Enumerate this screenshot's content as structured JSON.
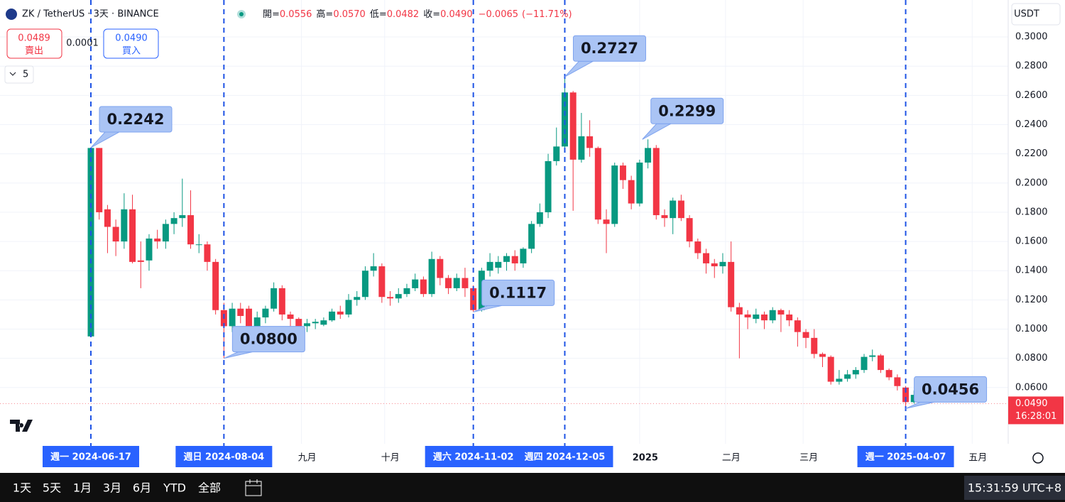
{
  "chart_data": {
    "type": "candlestick",
    "title": "ZK / TetherUS · 3天 · BINANCE",
    "interval": "3天",
    "start": "2024-06-17",
    "header": {
      "ohlc": [
        {
          "label": "開=",
          "value": "0.0556"
        },
        {
          "label": "高=",
          "value": "0.0570"
        },
        {
          "label": "低=",
          "value": "0.0482"
        },
        {
          "label": "收=",
          "value": "0.0490"
        }
      ],
      "change": "−0.0065",
      "change_pct": "(−11.71%)"
    },
    "trade": {
      "sell_price": "0.0489",
      "sell_label": "賣出",
      "spread": "0.0001",
      "buy_price": "0.0490",
      "buy_label": "買入",
      "quantity": "5"
    },
    "currency": "USDT",
    "up_color": "#089981",
    "down_color": "#f23645",
    "ylim": [
      0.0215,
      0.3253
    ],
    "yticks": [
      {
        "value": 0.06,
        "label": "0.0600"
      },
      {
        "value": 0.08,
        "label": "0.0800"
      },
      {
        "value": 0.1,
        "label": "0.1000"
      },
      {
        "value": 0.12,
        "label": "0.1200"
      },
      {
        "value": 0.14,
        "label": "0.1400"
      },
      {
        "value": 0.16,
        "label": "0.1600"
      },
      {
        "value": 0.18,
        "label": "0.1800"
      },
      {
        "value": 0.2,
        "label": "0.2000"
      },
      {
        "value": 0.22,
        "label": "0.2200"
      },
      {
        "value": 0.24,
        "label": "0.2400"
      },
      {
        "value": 0.26,
        "label": "0.2600"
      },
      {
        "value": 0.28,
        "label": "0.2800"
      },
      {
        "value": 0.3,
        "label": "0.3000"
      }
    ],
    "grid": true,
    "xlabels": [
      {
        "label": "九月",
        "date": "2024-09-01"
      },
      {
        "label": "十月",
        "date": "2024-10-01"
      },
      {
        "label": "2025",
        "date": "2025-01-01"
      },
      {
        "label": "二月",
        "date": "2025-02-01"
      },
      {
        "label": "三月",
        "date": "2025-03-01"
      },
      {
        "label": "五月",
        "date": "2025-05-01"
      }
    ],
    "markers": [
      {
        "label": "週一 2024-06-17",
        "value": 0.2242,
        "value_label": "0.2242"
      },
      {
        "label": "週日 2024-08-04",
        "value": 0.08,
        "value_label": "0.0800"
      },
      {
        "label": "週六 2024-11-02",
        "value": 0.1117,
        "value_label": "0.1117"
      },
      {
        "label": "週四 2024-12-05",
        "value": 0.2727,
        "value_label": "0.2727"
      },
      {
        "label": "週一 2025-04-07",
        "value": 0.0456,
        "value_label": "0.0456"
      }
    ],
    "extra_callout": {
      "date": "2025-01-02",
      "value": 0.2299,
      "value_label": "0.2299"
    },
    "last_price": {
      "value": 0.049,
      "label": "0.0490",
      "countdown": "16:28:01"
    },
    "candles": [
      {
        "o": 0.095,
        "h": 0.2242,
        "l": 0.095,
        "c": 0.224
      },
      {
        "o": 0.224,
        "h": 0.224,
        "l": 0.175,
        "c": 0.18
      },
      {
        "o": 0.182,
        "h": 0.185,
        "l": 0.152,
        "c": 0.17
      },
      {
        "o": 0.17,
        "h": 0.175,
        "l": 0.15,
        "c": 0.16
      },
      {
        "o": 0.16,
        "h": 0.193,
        "l": 0.155,
        "c": 0.182
      },
      {
        "o": 0.182,
        "h": 0.192,
        "l": 0.145,
        "c": 0.146
      },
      {
        "o": 0.147,
        "h": 0.16,
        "l": 0.128,
        "c": 0.146
      },
      {
        "o": 0.147,
        "h": 0.165,
        "l": 0.14,
        "c": 0.162
      },
      {
        "o": 0.162,
        "h": 0.168,
        "l": 0.155,
        "c": 0.16
      },
      {
        "o": 0.16,
        "h": 0.175,
        "l": 0.155,
        "c": 0.172
      },
      {
        "o": 0.172,
        "h": 0.18,
        "l": 0.165,
        "c": 0.176
      },
      {
        "o": 0.176,
        "h": 0.203,
        "l": 0.17,
        "c": 0.178
      },
      {
        "o": 0.178,
        "h": 0.195,
        "l": 0.155,
        "c": 0.158
      },
      {
        "o": 0.158,
        "h": 0.165,
        "l": 0.152,
        "c": 0.158
      },
      {
        "o": 0.158,
        "h": 0.16,
        "l": 0.14,
        "c": 0.146
      },
      {
        "o": 0.146,
        "h": 0.148,
        "l": 0.11,
        "c": 0.113
      },
      {
        "o": 0.113,
        "h": 0.118,
        "l": 0.08,
        "c": 0.102
      },
      {
        "o": 0.102,
        "h": 0.118,
        "l": 0.098,
        "c": 0.114
      },
      {
        "o": 0.114,
        "h": 0.118,
        "l": 0.104,
        "c": 0.109
      },
      {
        "o": 0.114,
        "h": 0.116,
        "l": 0.098,
        "c": 0.102
      },
      {
        "o": 0.102,
        "h": 0.112,
        "l": 0.098,
        "c": 0.108
      },
      {
        "o": 0.108,
        "h": 0.116,
        "l": 0.104,
        "c": 0.114
      },
      {
        "o": 0.114,
        "h": 0.132,
        "l": 0.112,
        "c": 0.128
      },
      {
        "o": 0.128,
        "h": 0.13,
        "l": 0.106,
        "c": 0.11
      },
      {
        "o": 0.11,
        "h": 0.112,
        "l": 0.1,
        "c": 0.107
      },
      {
        "o": 0.107,
        "h": 0.108,
        "l": 0.096,
        "c": 0.102
      },
      {
        "o": 0.102,
        "h": 0.107,
        "l": 0.098,
        "c": 0.104
      },
      {
        "o": 0.104,
        "h": 0.107,
        "l": 0.1,
        "c": 0.105
      },
      {
        "o": 0.103,
        "h": 0.108,
        "l": 0.102,
        "c": 0.106
      },
      {
        "o": 0.106,
        "h": 0.114,
        "l": 0.105,
        "c": 0.112
      },
      {
        "o": 0.112,
        "h": 0.116,
        "l": 0.107,
        "c": 0.11
      },
      {
        "o": 0.11,
        "h": 0.124,
        "l": 0.108,
        "c": 0.12
      },
      {
        "o": 0.12,
        "h": 0.126,
        "l": 0.116,
        "c": 0.122
      },
      {
        "o": 0.122,
        "h": 0.143,
        "l": 0.12,
        "c": 0.14
      },
      {
        "o": 0.14,
        "h": 0.152,
        "l": 0.136,
        "c": 0.143
      },
      {
        "o": 0.143,
        "h": 0.145,
        "l": 0.118,
        "c": 0.122
      },
      {
        "o": 0.122,
        "h": 0.126,
        "l": 0.116,
        "c": 0.121
      },
      {
        "o": 0.121,
        "h": 0.128,
        "l": 0.118,
        "c": 0.124
      },
      {
        "o": 0.124,
        "h": 0.131,
        "l": 0.122,
        "c": 0.128
      },
      {
        "o": 0.128,
        "h": 0.138,
        "l": 0.126,
        "c": 0.134
      },
      {
        "o": 0.134,
        "h": 0.136,
        "l": 0.122,
        "c": 0.124
      },
      {
        "o": 0.124,
        "h": 0.153,
        "l": 0.122,
        "c": 0.148
      },
      {
        "o": 0.148,
        "h": 0.15,
        "l": 0.13,
        "c": 0.135
      },
      {
        "o": 0.135,
        "h": 0.137,
        "l": 0.124,
        "c": 0.128
      },
      {
        "o": 0.128,
        "h": 0.138,
        "l": 0.126,
        "c": 0.135
      },
      {
        "o": 0.135,
        "h": 0.142,
        "l": 0.122,
        "c": 0.128
      },
      {
        "o": 0.128,
        "h": 0.13,
        "l": 0.1117,
        "c": 0.113
      },
      {
        "o": 0.113,
        "h": 0.142,
        "l": 0.112,
        "c": 0.14
      },
      {
        "o": 0.14,
        "h": 0.152,
        "l": 0.136,
        "c": 0.146
      },
      {
        "o": 0.142,
        "h": 0.15,
        "l": 0.138,
        "c": 0.146
      },
      {
        "o": 0.146,
        "h": 0.152,
        "l": 0.14,
        "c": 0.15
      },
      {
        "o": 0.15,
        "h": 0.154,
        "l": 0.14,
        "c": 0.145
      },
      {
        "o": 0.145,
        "h": 0.156,
        "l": 0.142,
        "c": 0.155
      },
      {
        "o": 0.155,
        "h": 0.174,
        "l": 0.152,
        "c": 0.172
      },
      {
        "o": 0.172,
        "h": 0.186,
        "l": 0.17,
        "c": 0.18
      },
      {
        "o": 0.18,
        "h": 0.22,
        "l": 0.176,
        "c": 0.215
      },
      {
        "o": 0.215,
        "h": 0.238,
        "l": 0.212,
        "c": 0.225
      },
      {
        "o": 0.225,
        "h": 0.2727,
        "l": 0.224,
        "c": 0.262
      },
      {
        "o": 0.262,
        "h": 0.263,
        "l": 0.181,
        "c": 0.216
      },
      {
        "o": 0.216,
        "h": 0.248,
        "l": 0.214,
        "c": 0.232
      },
      {
        "o": 0.232,
        "h": 0.243,
        "l": 0.218,
        "c": 0.224
      },
      {
        "o": 0.224,
        "h": 0.225,
        "l": 0.172,
        "c": 0.175
      },
      {
        "o": 0.175,
        "h": 0.182,
        "l": 0.152,
        "c": 0.172
      },
      {
        "o": 0.172,
        "h": 0.214,
        "l": 0.17,
        "c": 0.212
      },
      {
        "o": 0.212,
        "h": 0.214,
        "l": 0.196,
        "c": 0.202
      },
      {
        "o": 0.202,
        "h": 0.205,
        "l": 0.182,
        "c": 0.186
      },
      {
        "o": 0.186,
        "h": 0.216,
        "l": 0.184,
        "c": 0.214
      },
      {
        "o": 0.214,
        "h": 0.2299,
        "l": 0.21,
        "c": 0.224
      },
      {
        "o": 0.224,
        "h": 0.226,
        "l": 0.175,
        "c": 0.178
      },
      {
        "o": 0.178,
        "h": 0.182,
        "l": 0.17,
        "c": 0.176
      },
      {
        "o": 0.176,
        "h": 0.19,
        "l": 0.165,
        "c": 0.188
      },
      {
        "o": 0.188,
        "h": 0.192,
        "l": 0.174,
        "c": 0.176
      },
      {
        "o": 0.176,
        "h": 0.178,
        "l": 0.156,
        "c": 0.16
      },
      {
        "o": 0.16,
        "h": 0.162,
        "l": 0.148,
        "c": 0.152
      },
      {
        "o": 0.152,
        "h": 0.155,
        "l": 0.138,
        "c": 0.145
      },
      {
        "o": 0.145,
        "h": 0.148,
        "l": 0.135,
        "c": 0.143
      },
      {
        "o": 0.143,
        "h": 0.152,
        "l": 0.138,
        "c": 0.146
      },
      {
        "o": 0.146,
        "h": 0.16,
        "l": 0.112,
        "c": 0.115
      },
      {
        "o": 0.115,
        "h": 0.118,
        "l": 0.08,
        "c": 0.11
      },
      {
        "o": 0.11,
        "h": 0.113,
        "l": 0.1,
        "c": 0.108
      },
      {
        "o": 0.107,
        "h": 0.114,
        "l": 0.104,
        "c": 0.11
      },
      {
        "o": 0.11,
        "h": 0.112,
        "l": 0.1,
        "c": 0.106
      },
      {
        "o": 0.106,
        "h": 0.115,
        "l": 0.104,
        "c": 0.113
      },
      {
        "o": 0.113,
        "h": 0.114,
        "l": 0.098,
        "c": 0.11
      },
      {
        "o": 0.11,
        "h": 0.113,
        "l": 0.102,
        "c": 0.106
      },
      {
        "o": 0.106,
        "h": 0.108,
        "l": 0.088,
        "c": 0.098
      },
      {
        "o": 0.098,
        "h": 0.1,
        "l": 0.087,
        "c": 0.094
      },
      {
        "o": 0.094,
        "h": 0.1,
        "l": 0.08,
        "c": 0.083
      },
      {
        "o": 0.083,
        "h": 0.084,
        "l": 0.074,
        "c": 0.081
      },
      {
        "o": 0.081,
        "h": 0.082,
        "l": 0.062,
        "c": 0.064
      },
      {
        "o": 0.064,
        "h": 0.072,
        "l": 0.062,
        "c": 0.066
      },
      {
        "o": 0.066,
        "h": 0.072,
        "l": 0.064,
        "c": 0.069
      },
      {
        "o": 0.069,
        "h": 0.074,
        "l": 0.066,
        "c": 0.072
      },
      {
        "o": 0.072,
        "h": 0.083,
        "l": 0.07,
        "c": 0.081
      },
      {
        "o": 0.081,
        "h": 0.086,
        "l": 0.078,
        "c": 0.082
      },
      {
        "o": 0.082,
        "h": 0.083,
        "l": 0.07,
        "c": 0.072
      },
      {
        "o": 0.072,
        "h": 0.073,
        "l": 0.065,
        "c": 0.067
      },
      {
        "o": 0.067,
        "h": 0.069,
        "l": 0.058,
        "c": 0.061
      },
      {
        "o": 0.06,
        "h": 0.061,
        "l": 0.0456,
        "c": 0.05
      },
      {
        "o": 0.05,
        "h": 0.058,
        "l": 0.049,
        "c": 0.055
      },
      {
        "o": 0.0556,
        "h": 0.057,
        "l": 0.0482,
        "c": 0.049
      }
    ]
  },
  "toolbar": {
    "ranges": [
      "1天",
      "5天",
      "1月",
      "3月",
      "6月",
      "YTD",
      "全部"
    ],
    "clock": "15:31:59 UTC+8"
  }
}
